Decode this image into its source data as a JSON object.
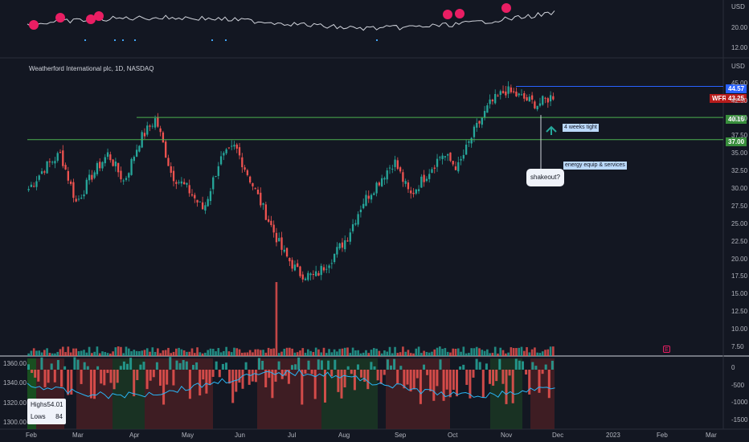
{
  "chart_data": {
    "type": "candlestick",
    "title": "Weatherford International plc, 1D, NASDAQ",
    "symbol": "WFRD",
    "currency": "USD",
    "x_axis": {
      "labels": [
        "Feb",
        "Mar",
        "Apr",
        "May",
        "Jun",
        "Jul",
        "Aug",
        "Sep",
        "Oct",
        "Nov",
        "Dec",
        "2023",
        "Feb",
        "Mar"
      ]
    },
    "y_axis": {
      "ticks": [
        7.5,
        10,
        12.5,
        15,
        17.5,
        20,
        22.5,
        25,
        27.5,
        30,
        32.5,
        35,
        37.5,
        40,
        42.5,
        45
      ],
      "ylim": [
        6,
        46
      ]
    },
    "price_levels": {
      "last": "43.25",
      "high_line": "44.57",
      "level_1": "40.16",
      "level_2": "37.00"
    },
    "annotations": {
      "tight": "4 weeks tight",
      "sector": "energy equip & services",
      "shakeout": "shakeout?"
    },
    "series_anchor_prices": [
      30,
      33,
      35,
      28,
      32,
      35,
      31,
      37,
      40,
      32,
      30,
      27,
      34,
      36,
      31,
      26,
      21,
      18,
      17.5,
      20,
      23,
      28,
      31,
      34,
      29,
      32,
      35,
      33,
      38,
      42,
      44,
      43,
      42,
      43.25
    ],
    "top_panel": {
      "currency": "USD",
      "ticks": [
        "20.00",
        "12.00"
      ]
    },
    "bottom_panel": {
      "left_ticks": [
        "1360.00",
        "1340.00",
        "1320.00",
        "1300.00"
      ],
      "right_ticks": [
        "0",
        "-500",
        "-1000",
        "-1500"
      ],
      "highs_label": "Highs",
      "highs_value": "54.01",
      "lows_label": "Lows",
      "lows_value": "84"
    },
    "earnings_badge": "E",
    "colors": {
      "up": "#26a69a",
      "down": "#ef5350",
      "level": "#4caf50",
      "high": "#2962ff",
      "rs_dot": "#e91e63"
    }
  }
}
